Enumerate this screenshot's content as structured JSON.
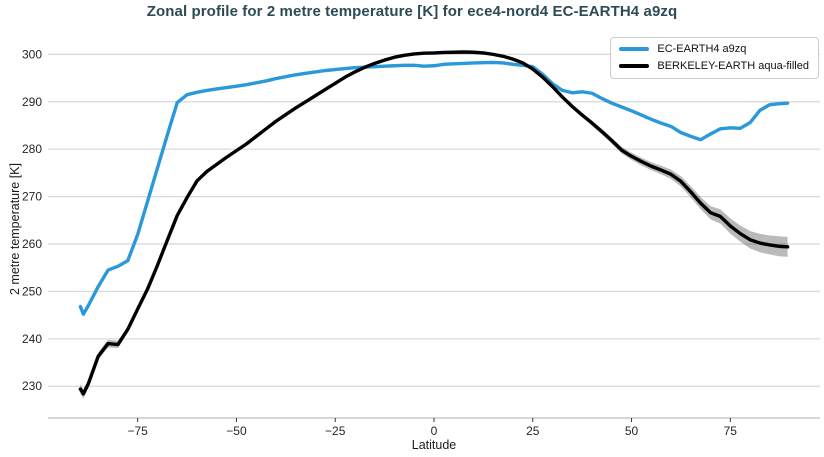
{
  "chart_data": {
    "type": "line",
    "title": "Zonal profile for 2 metre temperature [K] for ece4-nord4 EC-EARTH4 a9zq",
    "xlabel": "Latitude",
    "ylabel": "2 metre temperature [K]",
    "xlim": [
      -97.7,
      97.7
    ],
    "ylim": [
      223.3,
      302.4
    ],
    "grid": "horizontal",
    "legend_position": "upper right",
    "xticks": {
      "values": [
        -75,
        -50,
        -25,
        0,
        25,
        50,
        75
      ],
      "labels": [
        "−75",
        "−50",
        "−25",
        "0",
        "25",
        "50",
        "75"
      ]
    },
    "yticks": {
      "values": [
        230,
        240,
        250,
        260,
        270,
        280,
        290,
        300
      ],
      "labels": [
        "230",
        "240",
        "250",
        "260",
        "270",
        "280",
        "290",
        "300"
      ]
    },
    "x": [
      -89.5,
      -88.75,
      -87.5,
      -85,
      -82.5,
      -80,
      -77.5,
      -75,
      -72.5,
      -70,
      -67.5,
      -65,
      -62.5,
      -60,
      -57.5,
      -55,
      -52.5,
      -50,
      -47.5,
      -45,
      -42.5,
      -40,
      -37.5,
      -35,
      -32.5,
      -30,
      -27.5,
      -25,
      -22.5,
      -20,
      -17.5,
      -15,
      -12.5,
      -10,
      -7.5,
      -5,
      -2.5,
      0,
      2.5,
      5,
      7.5,
      10,
      12.5,
      15,
      17.5,
      20,
      22.5,
      25,
      27.5,
      30,
      32.5,
      35,
      37.5,
      40,
      42.5,
      45,
      47.5,
      50,
      52.5,
      55,
      57.5,
      60,
      62.5,
      65,
      67.5,
      70,
      72.5,
      75,
      77.5,
      80,
      82.5,
      85,
      87.5,
      89.5
    ],
    "series": [
      {
        "name": "EC-EARTH4 a9zq",
        "color": "#2b98d9",
        "linewidth": 3.4,
        "values": [
          246.8,
          245.2,
          247.0,
          251.0,
          254.5,
          255.3,
          256.5,
          262.0,
          269.0,
          276.0,
          283.0,
          289.8,
          291.5,
          292.0,
          292.4,
          292.7,
          293.0,
          293.3,
          293.6,
          294.0,
          294.4,
          294.9,
          295.3,
          295.7,
          296.0,
          296.3,
          296.6,
          296.8,
          297.0,
          297.2,
          297.3,
          297.4,
          297.5,
          297.6,
          297.7,
          297.7,
          297.5,
          297.6,
          297.9,
          298.0,
          298.1,
          298.2,
          298.25,
          298.3,
          298.2,
          297.9,
          297.7,
          297.4,
          295.8,
          293.8,
          292.4,
          291.9,
          292.1,
          291.8,
          290.7,
          289.7,
          288.9,
          288.1,
          287.2,
          286.3,
          285.5,
          284.8,
          283.5,
          282.7,
          282.0,
          283.2,
          284.3,
          284.5,
          284.4,
          285.6,
          288.2,
          289.4,
          289.6,
          289.7
        ]
      },
      {
        "name": "BERKELEY-EARTH aqua-filled",
        "color": "#000000",
        "linewidth": 3.4,
        "band_color": "rgba(0,0,0,0.27)",
        "band_halfwidth": [
          1.0,
          1.0,
          0.9,
          0.8,
          0.8,
          0.8,
          0.6,
          0.5,
          0.4,
          0.4,
          0.35,
          0.3,
          0.3,
          0.3,
          0.3,
          0.3,
          0.25,
          0.25,
          0.25,
          0.25,
          0.25,
          0.25,
          0.25,
          0.25,
          0.25,
          0.25,
          0.2,
          0.2,
          0.2,
          0.2,
          0.2,
          0.2,
          0.2,
          0.2,
          0.2,
          0.2,
          0.2,
          0.2,
          0.2,
          0.2,
          0.2,
          0.2,
          0.2,
          0.2,
          0.2,
          0.2,
          0.25,
          0.25,
          0.3,
          0.35,
          0.4,
          0.45,
          0.5,
          0.55,
          0.6,
          0.65,
          0.7,
          0.75,
          0.8,
          0.85,
          0.9,
          1.0,
          1.1,
          1.2,
          1.3,
          1.4,
          1.5,
          1.6,
          1.7,
          1.85,
          1.95,
          2.0,
          2.1,
          2.1
        ],
        "values": [
          229.4,
          228.4,
          230.5,
          236.3,
          239.0,
          238.8,
          242.0,
          246.3,
          250.5,
          255.5,
          260.8,
          266.0,
          269.8,
          273.3,
          275.3,
          276.8,
          278.3,
          279.7,
          281.1,
          282.7,
          284.3,
          285.9,
          287.3,
          288.7,
          290.0,
          291.3,
          292.6,
          293.9,
          295.2,
          296.3,
          297.3,
          298.1,
          298.8,
          299.4,
          299.8,
          300.1,
          300.25,
          300.3,
          300.4,
          300.45,
          300.5,
          300.45,
          300.3,
          300.0,
          299.6,
          299.0,
          298.2,
          296.9,
          295.2,
          293.2,
          291.0,
          289.0,
          287.2,
          285.5,
          283.7,
          281.8,
          279.8,
          278.5,
          277.4,
          276.4,
          275.6,
          274.7,
          273.2,
          271.0,
          268.6,
          266.6,
          265.8,
          263.8,
          262.2,
          260.9,
          260.2,
          259.8,
          259.5,
          259.4
        ]
      }
    ]
  },
  "colors": {
    "background": "#ffffff",
    "title": "#2d4b55",
    "grid": "#d8d8d8",
    "axis_line": "#c8c8c8",
    "tick_mark": "#333333",
    "tick_label": "#262626"
  }
}
